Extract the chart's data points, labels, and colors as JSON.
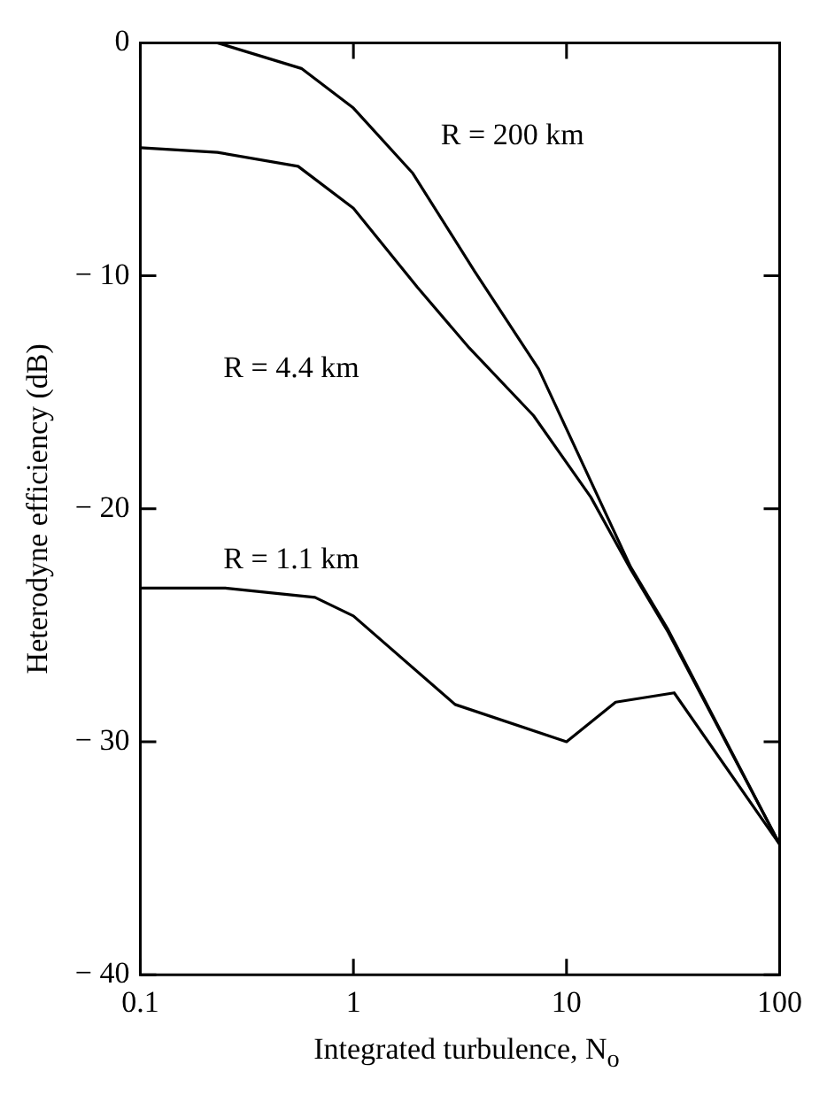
{
  "chart_data": {
    "type": "line",
    "xlabel": "Integrated turbulence, N$_{o}$",
    "ylabel": "Heterodyne efficiency (dB)",
    "log": "x",
    "xlim": [
      0.1,
      100
    ],
    "xticks": [
      0.1,
      1,
      10,
      100
    ],
    "ylim": [
      -40,
      0
    ],
    "yticks": [
      0,
      -10,
      -20,
      -30,
      -40
    ],
    "grid": false,
    "legend": false,
    "marker": "none",
    "line_style": "solid",
    "series": [
      {
        "color": "#000000",
        "x": [
          0.1,
          0.23,
          0.57,
          1,
          1.9,
          3.7,
          7.4,
          20,
          30,
          100
        ],
        "values": [
          0,
          0,
          -1.1,
          -2.8,
          -5.6,
          -9.8,
          -14,
          -22.5,
          -25.2,
          -34.4
        ]
      },
      {
        "color": "#000000",
        "x": [
          0.1,
          0.23,
          0.55,
          1,
          2,
          3.5,
          7,
          13,
          20,
          30,
          100
        ],
        "values": [
          -4.5,
          -4.7,
          -5.3,
          -7.1,
          -10.5,
          -13.1,
          -16,
          -19.5,
          -22.6,
          -25.3,
          -34.4
        ]
      },
      {
        "color": "#000000",
        "x": [
          0.1,
          0.25,
          0.66,
          1,
          3,
          10,
          17,
          32,
          100
        ],
        "values": [
          -23.4,
          -23.4,
          -23.8,
          -24.6,
          -28.4,
          -30,
          -28.3,
          -27.9,
          -34.4
        ]
      }
    ],
    "annotations": [
      "R = 200 km",
      "R = 4.4 km",
      "R = 1.1 km"
    ]
  }
}
